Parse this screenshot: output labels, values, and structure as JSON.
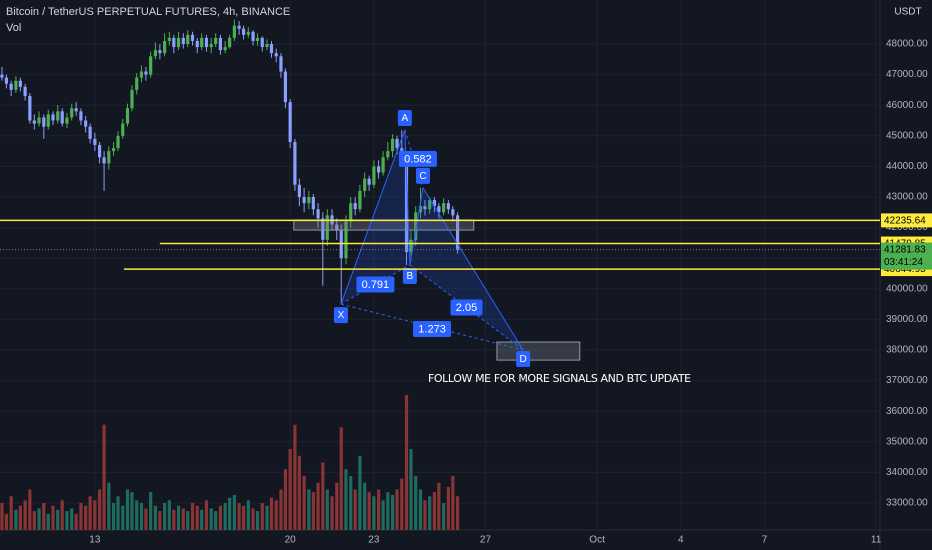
{
  "chart_data": {
    "type": "candlestick",
    "title": "Bitcoin / TetherUS PERPETUAL FUTURES, 4h, BINANCE",
    "volume_label": "Vol",
    "currency": "USDT",
    "annotation": "FOLLOW ME FOR MORE SIGNALS AND BTC UPDATE",
    "up_color": "#4caf50",
    "down_color": "#8c9eff",
    "vol_up_color": "#1f6b5f",
    "vol_down_color": "#8a3434",
    "level_color": "#ffeb3b",
    "last_color": "#4caf50",
    "pattern_color": "#2962ff",
    "grid": true,
    "xlim": [
      9.6,
      41.14
    ],
    "xticks": [
      13,
      20,
      23,
      27,
      {
        "value": 31,
        "label": "Oct"
      },
      {
        "value": 34,
        "label": "4"
      },
      {
        "value": 37,
        "label": "7"
      },
      {
        "value": 41,
        "label": "11"
      }
    ],
    "ylim": [
      32118,
      49438
    ],
    "yticks": [
      {
        "value": 33000,
        "label": "33000.00"
      },
      {
        "value": 34000,
        "label": "34000.00"
      },
      {
        "value": 35000,
        "label": "35000.00"
      },
      {
        "value": 36000,
        "label": "36000.00"
      },
      {
        "value": 37000,
        "label": "37000.00"
      },
      {
        "value": 38000,
        "label": "38000.00"
      },
      {
        "value": 39000,
        "label": "39000.00"
      },
      {
        "value": 40000,
        "label": "40000.00"
      },
      {
        "value": 41000,
        "label": "41000.00"
      },
      {
        "value": 42000,
        "label": "42000.00"
      },
      {
        "value": 43000,
        "label": "43000.00"
      },
      {
        "value": 44000,
        "label": "44000.00"
      },
      {
        "value": 45000,
        "label": "45000.00"
      },
      {
        "value": 46000,
        "label": "46000.00"
      },
      {
        "value": 47000,
        "label": "47000.00"
      },
      {
        "value": 48000,
        "label": "48000.00"
      }
    ],
    "x": [
      9.67,
      9.83,
      10,
      10.17,
      10.33,
      10.5,
      10.67,
      10.83,
      11,
      11.17,
      11.33,
      11.5,
      11.67,
      11.83,
      12,
      12.17,
      12.33,
      12.5,
      12.67,
      12.83,
      13,
      13.17,
      13.33,
      13.5,
      13.67,
      13.83,
      14,
      14.17,
      14.33,
      14.5,
      14.67,
      14.83,
      15,
      15.17,
      15.33,
      15.5,
      15.67,
      15.83,
      16,
      16.17,
      16.33,
      16.5,
      16.67,
      16.83,
      17,
      17.17,
      17.33,
      17.5,
      17.67,
      17.83,
      18,
      18.17,
      18.33,
      18.5,
      18.67,
      18.83,
      19,
      19.17,
      19.33,
      19.5,
      19.67,
      19.83,
      20,
      20.17,
      20.33,
      20.5,
      20.67,
      20.83,
      21,
      21.17,
      21.33,
      21.5,
      21.67,
      21.83,
      22,
      22.17,
      22.33,
      22.5,
      22.67,
      22.83,
      23,
      23.17,
      23.33,
      23.5,
      23.67,
      23.83,
      24,
      24.17,
      24.33,
      24.5,
      24.67,
      24.83,
      25,
      25.17,
      25.33,
      25.5,
      25.67,
      25.83,
      26
    ],
    "open": [
      47000,
      46900,
      46700,
      46500,
      46800,
      46600,
      46300,
      45500,
      45400,
      45600,
      45300,
      45700,
      45500,
      45800,
      45400,
      45600,
      45900,
      45800,
      45500,
      45300,
      44900,
      44700,
      44300,
      44100,
      44500,
      44600,
      45000,
      45400,
      45900,
      46500,
      46900,
      47100,
      47000,
      47600,
      47800,
      47700,
      48100,
      48200,
      47900,
      48200,
      48000,
      48300,
      48100,
      47900,
      48200,
      47900,
      48000,
      48200,
      47800,
      47900,
      48200,
      48600,
      48500,
      48300,
      48400,
      48100,
      48200,
      47900,
      48000,
      47700,
      47600,
      47100,
      46100,
      44800,
      43400,
      43000,
      42800,
      43000,
      42600,
      42300,
      41600,
      42400,
      42100,
      41900,
      41000,
      42200,
      42800,
      42600,
      43200,
      43600,
      43400,
      44000,
      43800,
      44300,
      44500,
      44900,
      44600,
      44400,
      41200,
      41600,
      42500,
      42700,
      42600,
      42900,
      42700,
      42500,
      42800,
      42600,
      42400
    ],
    "high": [
      47250,
      47000,
      46800,
      46950,
      46900,
      46700,
      46400,
      45700,
      45800,
      45700,
      45850,
      45800,
      46000,
      45900,
      45750,
      46050,
      46100,
      45900,
      45650,
      45400,
      45100,
      44800,
      44500,
      44650,
      44800,
      45150,
      45550,
      46050,
      46650,
      47050,
      47300,
      47250,
      47750,
      48050,
      48000,
      48350,
      48400,
      48300,
      48400,
      48350,
      48450,
      48400,
      48200,
      48350,
      48300,
      48200,
      48350,
      48300,
      48100,
      48300,
      48800,
      48750,
      48600,
      48550,
      48450,
      48350,
      48250,
      48150,
      48100,
      47850,
      47700,
      47200,
      46200,
      44900,
      43600,
      43300,
      43200,
      43100,
      42800,
      42500,
      42600,
      42600,
      42300,
      42100,
      42400,
      43000,
      43000,
      43400,
      43800,
      43700,
      44200,
      44200,
      44500,
      44800,
      45050,
      45000,
      45190,
      44500,
      41900,
      42700,
      43300,
      42900,
      43000,
      43000,
      42800,
      42950,
      42900,
      42700,
      42500
    ],
    "low": [
      46800,
      46550,
      46300,
      46400,
      46450,
      46150,
      45400,
      45200,
      45300,
      44900,
      45200,
      45350,
      45400,
      45300,
      45250,
      45500,
      45650,
      45350,
      45100,
      44750,
      44500,
      44100,
      43200,
      43900,
      44350,
      44500,
      44900,
      45300,
      45800,
      46350,
      46750,
      46800,
      46900,
      47500,
      47500,
      47600,
      47950,
      47700,
      47800,
      47850,
      47900,
      47950,
      47700,
      47800,
      47750,
      47700,
      47900,
      47650,
      47700,
      47850,
      48100,
      48300,
      48150,
      48200,
      47950,
      47950,
      47750,
      47800,
      47550,
      47400,
      46900,
      45900,
      44600,
      43200,
      42700,
      42500,
      42600,
      42400,
      42000,
      40100,
      41400,
      41900,
      41600,
      39500,
      40800,
      42000,
      42400,
      42500,
      43000,
      43200,
      43300,
      43600,
      43700,
      44200,
      44300,
      44400,
      44200,
      40780,
      40900,
      41400,
      42300,
      42400,
      42450,
      42500,
      42300,
      42400,
      42450,
      42200,
      41150
    ],
    "close": [
      46900,
      46700,
      46500,
      46800,
      46600,
      46300,
      45500,
      45400,
      45600,
      45300,
      45700,
      45500,
      45800,
      45400,
      45600,
      45900,
      45800,
      45500,
      45300,
      44900,
      44700,
      44300,
      44100,
      44500,
      44600,
      45000,
      45400,
      45900,
      46500,
      46900,
      47100,
      47000,
      47600,
      47800,
      47700,
      48100,
      48200,
      47900,
      48200,
      48000,
      48300,
      48100,
      47900,
      48200,
      47900,
      48000,
      48200,
      47800,
      47900,
      48200,
      48600,
      48500,
      48300,
      48400,
      48100,
      48200,
      47900,
      48000,
      47700,
      47600,
      47100,
      46100,
      44800,
      43400,
      43000,
      42800,
      43000,
      42600,
      42300,
      41600,
      42400,
      42100,
      41900,
      41000,
      42200,
      42800,
      42600,
      43200,
      43600,
      43400,
      44000,
      43800,
      44300,
      44500,
      44900,
      44600,
      44400,
      41200,
      41600,
      42500,
      42700,
      42600,
      42900,
      42700,
      42500,
      42800,
      42600,
      42400,
      41281.83
    ],
    "volume": [
      20,
      12,
      25,
      15,
      18,
      22,
      30,
      14,
      16,
      20,
      12,
      18,
      15,
      22,
      14,
      16,
      12,
      20,
      18,
      25,
      22,
      30,
      78,
      35,
      20,
      25,
      18,
      30,
      28,
      22,
      20,
      16,
      28,
      18,
      14,
      20,
      22,
      15,
      18,
      16,
      14,
      20,
      18,
      15,
      22,
      16,
      14,
      18,
      20,
      24,
      26,
      20,
      18,
      22,
      16,
      14,
      20,
      18,
      24,
      22,
      30,
      45,
      60,
      78,
      55,
      40,
      30,
      28,
      35,
      50,
      30,
      25,
      35,
      76,
      45,
      40,
      30,
      55,
      35,
      28,
      25,
      30,
      22,
      28,
      26,
      30,
      38,
      100,
      60,
      40,
      30,
      22,
      25,
      28,
      35,
      20,
      32,
      40,
      25
    ],
    "levels": [
      {
        "value": 42235.64,
        "from": 9.6
      },
      {
        "value": 41479.85,
        "from": 15.33
      },
      {
        "value": 40644.95,
        "from": 14.04
      }
    ],
    "last_price": 41281.83,
    "countdown": "03:41:24",
    "pattern": [
      {
        "label": "X",
        "x": 21.82,
        "y": 39500
      },
      {
        "label": "A",
        "x": 24.11,
        "y": 45190
      },
      {
        "label": "B",
        "x": 24.29,
        "y": 40780
      },
      {
        "label": "C",
        "x": 24.76,
        "y": 43300
      },
      {
        "label": "D",
        "x": 28.35,
        "y": 38000
      }
    ],
    "ratios": [
      "0.791",
      "0.582",
      "2.05",
      "1.273"
    ],
    "zones": [
      {
        "x": [
          20.13,
          26.58
        ],
        "y": [
          41920,
          42250
        ]
      },
      {
        "x": [
          27.41,
          30.38
        ],
        "y": [
          37670,
          38260
        ]
      }
    ]
  }
}
